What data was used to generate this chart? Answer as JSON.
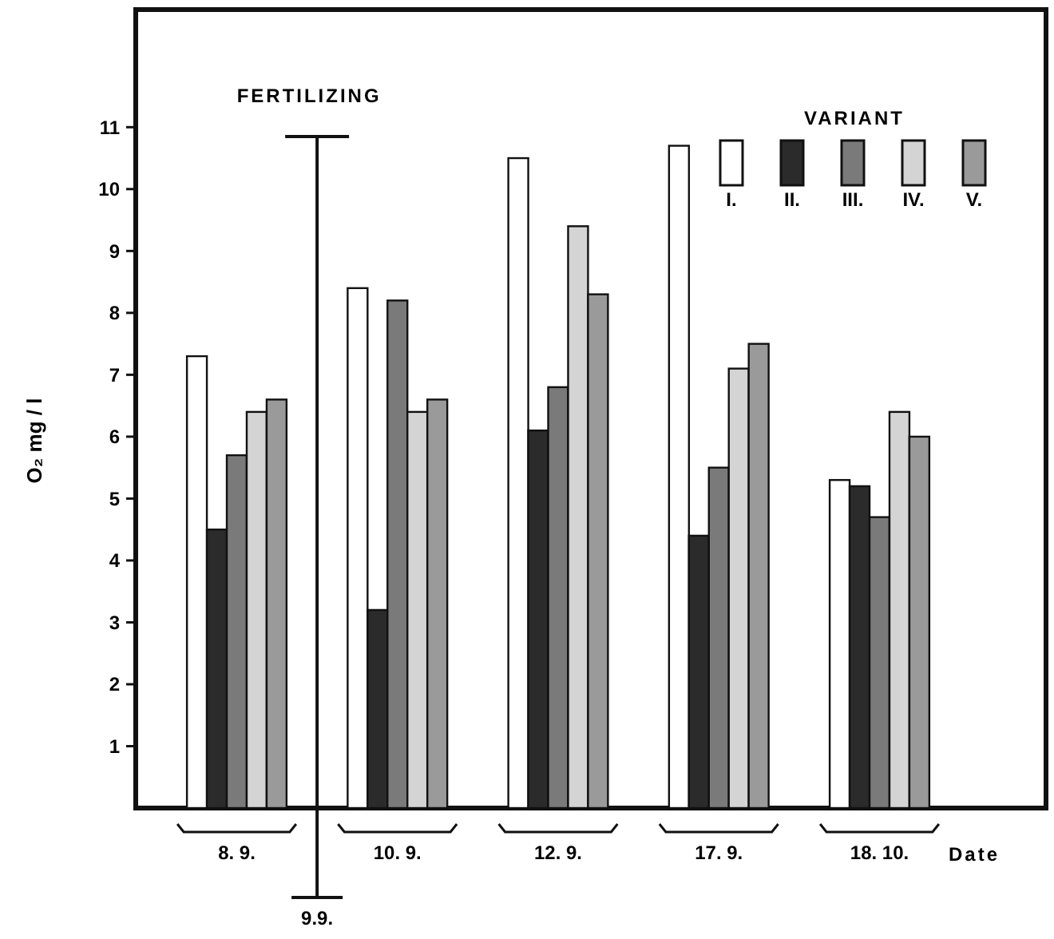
{
  "chart_data": {
    "type": "bar",
    "ylabel": "O₂ mg / l",
    "xlabel": "Date",
    "legend_title": "VARIANT",
    "legend": "top right",
    "grid": false,
    "categories": [
      "8. 9.",
      "10. 9.",
      "12. 9.",
      "17. 9.",
      "18. 10."
    ],
    "ylim": [
      0,
      12.9
    ],
    "yticks": [
      1,
      2,
      3,
      4,
      5,
      6,
      7,
      8,
      9,
      10,
      11
    ],
    "series": [
      {
        "name": "I.",
        "color": "#ffffff",
        "values": [
          7.3,
          8.4,
          10.5,
          10.7,
          5.3
        ]
      },
      {
        "name": "II.",
        "color": "#2b2b2b",
        "values": [
          4.5,
          3.2,
          6.1,
          4.4,
          5.2
        ]
      },
      {
        "name": "III.",
        "color": "#7a7a7a",
        "values": [
          5.7,
          8.2,
          6.8,
          5.5,
          4.7
        ]
      },
      {
        "name": "IV.",
        "color": "#d4d4d4",
        "values": [
          6.4,
          6.4,
          9.4,
          7.1,
          6.4
        ]
      },
      {
        "name": "V.",
        "color": "#9a9a9a",
        "values": [
          6.6,
          6.6,
          8.3,
          7.5,
          6.0
        ]
      }
    ],
    "ref_lines": [
      {
        "axis": "x",
        "value": "9.9.",
        "label": "FERTILIZING"
      }
    ]
  }
}
